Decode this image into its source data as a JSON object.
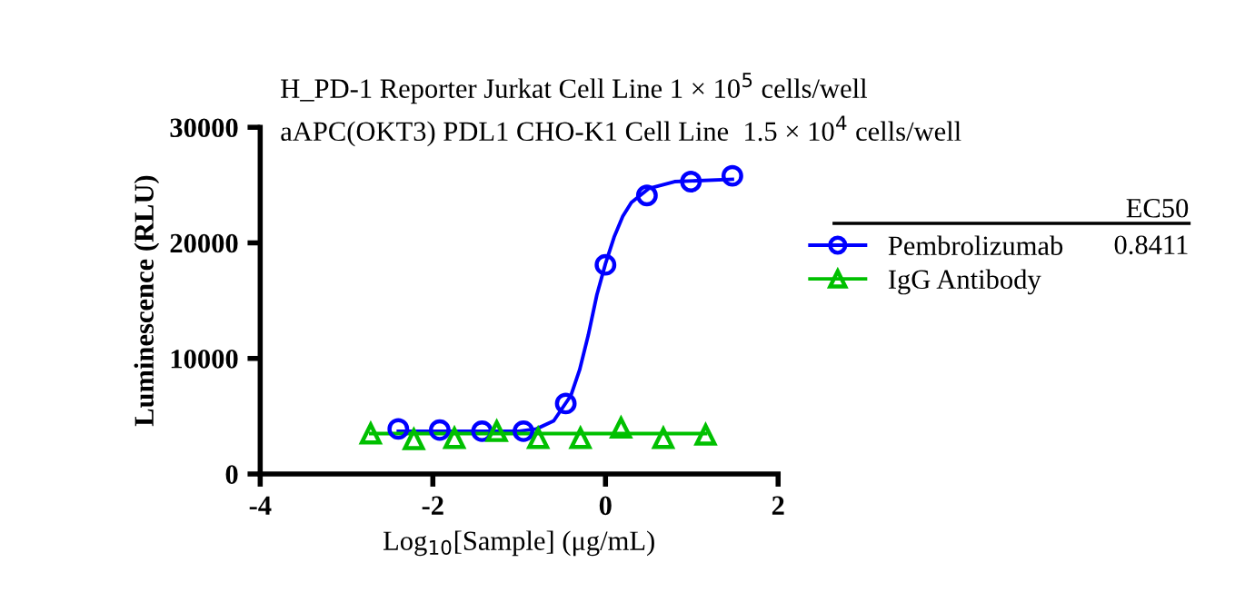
{
  "chart_data": {
    "type": "scatter",
    "title": "H_PD-1 Reporter Jurkat Cell Line 1 × 10$^{5}$ cells/well",
    "subtitle": "aAPC(OKT3) PDL1 CHO-K1 Cell Line  1.5 × 10$^{4}$ cells/well",
    "xlabel": "Log$_{10}$[Sample] (μg/mL)",
    "ylabel": "Luminescence (RLU)",
    "legend_title": "EC50",
    "annotations": [
      "0.8411"
    ],
    "xlim": [
      -4,
      2
    ],
    "xticks": [
      -4,
      -2,
      0,
      2
    ],
    "ylim": [
      0,
      30000
    ],
    "yticks": [
      0,
      10000,
      20000,
      30000
    ],
    "grid": false,
    "legend": "right",
    "series": [
      {
        "name": "Pembrolizumab",
        "color": "#0000ff",
        "marker": "circle",
        "x": [
          -2.4,
          -1.92,
          -1.43,
          -0.95,
          -0.46,
          0.0,
          0.48,
          0.99,
          1.47
        ],
        "values": [
          3900,
          3800,
          3700,
          3700,
          6100,
          18100,
          24100,
          25300,
          25800
        ]
      },
      {
        "name": "IgG Antibody",
        "color": "#00c000",
        "marker": "triangle",
        "x": [
          -2.72,
          -2.22,
          -1.75,
          -1.26,
          -0.78,
          -0.29,
          0.18,
          0.67,
          1.16
        ],
        "values": [
          3500,
          3000,
          3100,
          3700,
          3100,
          3100,
          4000,
          3100,
          3400
        ]
      },
      {
        "color": "#0000ff",
        "type": "line",
        "x": [
          -2.4,
          -1.0,
          -0.8,
          -0.6,
          -0.4,
          -0.3,
          -0.2,
          -0.1,
          0.0,
          0.1,
          0.2,
          0.3,
          0.5,
          0.8,
          1.47
        ],
        "values": [
          3700,
          3700,
          3900,
          4600,
          6800,
          9000,
          12000,
          15500,
          18200,
          20500,
          22300,
          23500,
          24700,
          25300,
          25500
        ]
      },
      {
        "color": "#00c000",
        "type": "line",
        "x": [
          -2.72,
          1.16
        ],
        "values": [
          3500,
          3500
        ]
      }
    ]
  }
}
